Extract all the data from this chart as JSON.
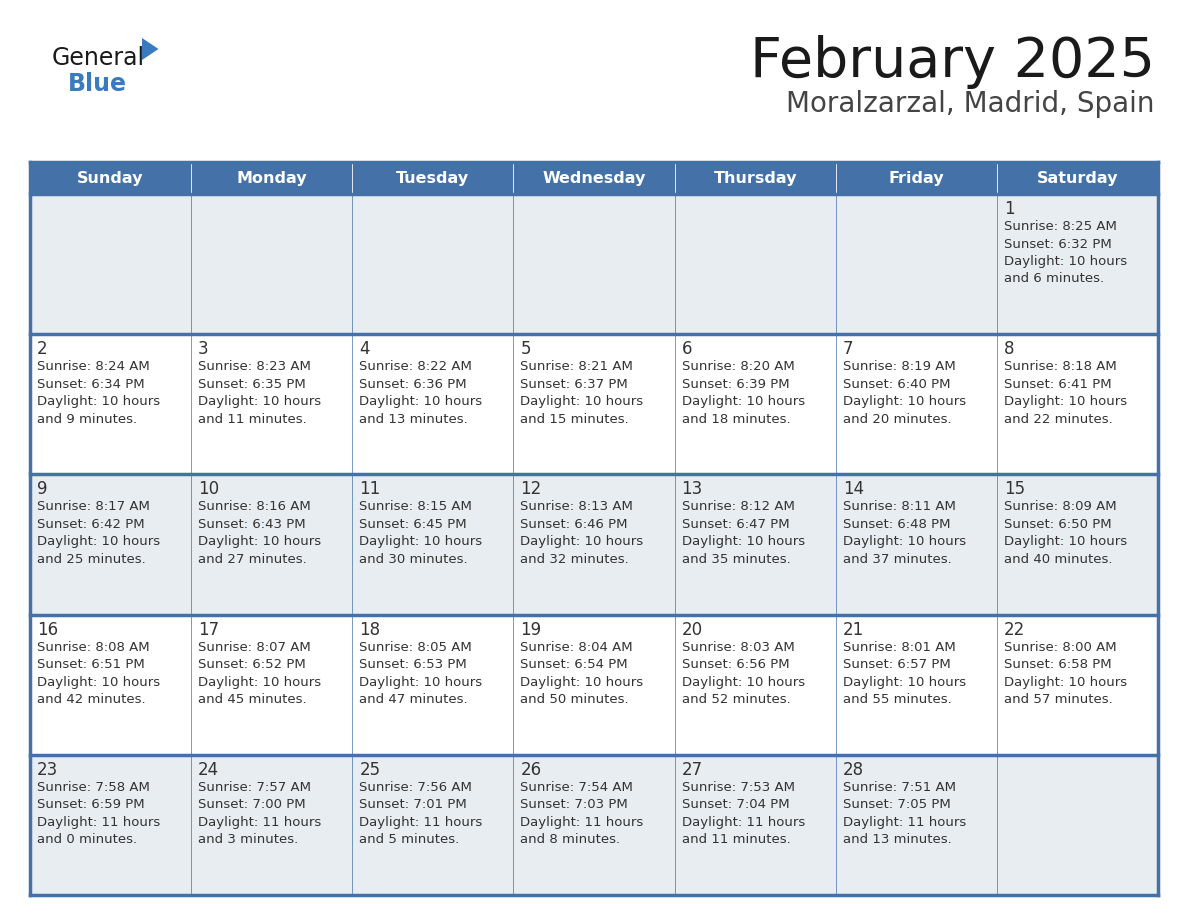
{
  "title": "February 2025",
  "subtitle": "Moralzarzal, Madrid, Spain",
  "days_of_week": [
    "Sunday",
    "Monday",
    "Tuesday",
    "Wednesday",
    "Thursday",
    "Friday",
    "Saturday"
  ],
  "header_bg": "#4472a8",
  "header_text": "#ffffff",
  "row_bg_gray": "#e8edf2",
  "row_bg_white": "#ffffff",
  "border_color": "#4472a8",
  "text_color": "#333333",
  "day_num_color": "#333333",
  "title_color": "#1a1a1a",
  "subtitle_color": "#444444",
  "logo_text_color": "#1a1a1a",
  "logo_blue_color": "#3a7abf",
  "calendar_data": [
    [
      {
        "day": null,
        "info": ""
      },
      {
        "day": null,
        "info": ""
      },
      {
        "day": null,
        "info": ""
      },
      {
        "day": null,
        "info": ""
      },
      {
        "day": null,
        "info": ""
      },
      {
        "day": null,
        "info": ""
      },
      {
        "day": 1,
        "info": "Sunrise: 8:25 AM\nSunset: 6:32 PM\nDaylight: 10 hours\nand 6 minutes."
      }
    ],
    [
      {
        "day": 2,
        "info": "Sunrise: 8:24 AM\nSunset: 6:34 PM\nDaylight: 10 hours\nand 9 minutes."
      },
      {
        "day": 3,
        "info": "Sunrise: 8:23 AM\nSunset: 6:35 PM\nDaylight: 10 hours\nand 11 minutes."
      },
      {
        "day": 4,
        "info": "Sunrise: 8:22 AM\nSunset: 6:36 PM\nDaylight: 10 hours\nand 13 minutes."
      },
      {
        "day": 5,
        "info": "Sunrise: 8:21 AM\nSunset: 6:37 PM\nDaylight: 10 hours\nand 15 minutes."
      },
      {
        "day": 6,
        "info": "Sunrise: 8:20 AM\nSunset: 6:39 PM\nDaylight: 10 hours\nand 18 minutes."
      },
      {
        "day": 7,
        "info": "Sunrise: 8:19 AM\nSunset: 6:40 PM\nDaylight: 10 hours\nand 20 minutes."
      },
      {
        "day": 8,
        "info": "Sunrise: 8:18 AM\nSunset: 6:41 PM\nDaylight: 10 hours\nand 22 minutes."
      }
    ],
    [
      {
        "day": 9,
        "info": "Sunrise: 8:17 AM\nSunset: 6:42 PM\nDaylight: 10 hours\nand 25 minutes."
      },
      {
        "day": 10,
        "info": "Sunrise: 8:16 AM\nSunset: 6:43 PM\nDaylight: 10 hours\nand 27 minutes."
      },
      {
        "day": 11,
        "info": "Sunrise: 8:15 AM\nSunset: 6:45 PM\nDaylight: 10 hours\nand 30 minutes."
      },
      {
        "day": 12,
        "info": "Sunrise: 8:13 AM\nSunset: 6:46 PM\nDaylight: 10 hours\nand 32 minutes."
      },
      {
        "day": 13,
        "info": "Sunrise: 8:12 AM\nSunset: 6:47 PM\nDaylight: 10 hours\nand 35 minutes."
      },
      {
        "day": 14,
        "info": "Sunrise: 8:11 AM\nSunset: 6:48 PM\nDaylight: 10 hours\nand 37 minutes."
      },
      {
        "day": 15,
        "info": "Sunrise: 8:09 AM\nSunset: 6:50 PM\nDaylight: 10 hours\nand 40 minutes."
      }
    ],
    [
      {
        "day": 16,
        "info": "Sunrise: 8:08 AM\nSunset: 6:51 PM\nDaylight: 10 hours\nand 42 minutes."
      },
      {
        "day": 17,
        "info": "Sunrise: 8:07 AM\nSunset: 6:52 PM\nDaylight: 10 hours\nand 45 minutes."
      },
      {
        "day": 18,
        "info": "Sunrise: 8:05 AM\nSunset: 6:53 PM\nDaylight: 10 hours\nand 47 minutes."
      },
      {
        "day": 19,
        "info": "Sunrise: 8:04 AM\nSunset: 6:54 PM\nDaylight: 10 hours\nand 50 minutes."
      },
      {
        "day": 20,
        "info": "Sunrise: 8:03 AM\nSunset: 6:56 PM\nDaylight: 10 hours\nand 52 minutes."
      },
      {
        "day": 21,
        "info": "Sunrise: 8:01 AM\nSunset: 6:57 PM\nDaylight: 10 hours\nand 55 minutes."
      },
      {
        "day": 22,
        "info": "Sunrise: 8:00 AM\nSunset: 6:58 PM\nDaylight: 10 hours\nand 57 minutes."
      }
    ],
    [
      {
        "day": 23,
        "info": "Sunrise: 7:58 AM\nSunset: 6:59 PM\nDaylight: 11 hours\nand 0 minutes."
      },
      {
        "day": 24,
        "info": "Sunrise: 7:57 AM\nSunset: 7:00 PM\nDaylight: 11 hours\nand 3 minutes."
      },
      {
        "day": 25,
        "info": "Sunrise: 7:56 AM\nSunset: 7:01 PM\nDaylight: 11 hours\nand 5 minutes."
      },
      {
        "day": 26,
        "info": "Sunrise: 7:54 AM\nSunset: 7:03 PM\nDaylight: 11 hours\nand 8 minutes."
      },
      {
        "day": 27,
        "info": "Sunrise: 7:53 AM\nSunset: 7:04 PM\nDaylight: 11 hours\nand 11 minutes."
      },
      {
        "day": 28,
        "info": "Sunrise: 7:51 AM\nSunset: 7:05 PM\nDaylight: 11 hours\nand 13 minutes."
      },
      {
        "day": null,
        "info": ""
      }
    ]
  ]
}
